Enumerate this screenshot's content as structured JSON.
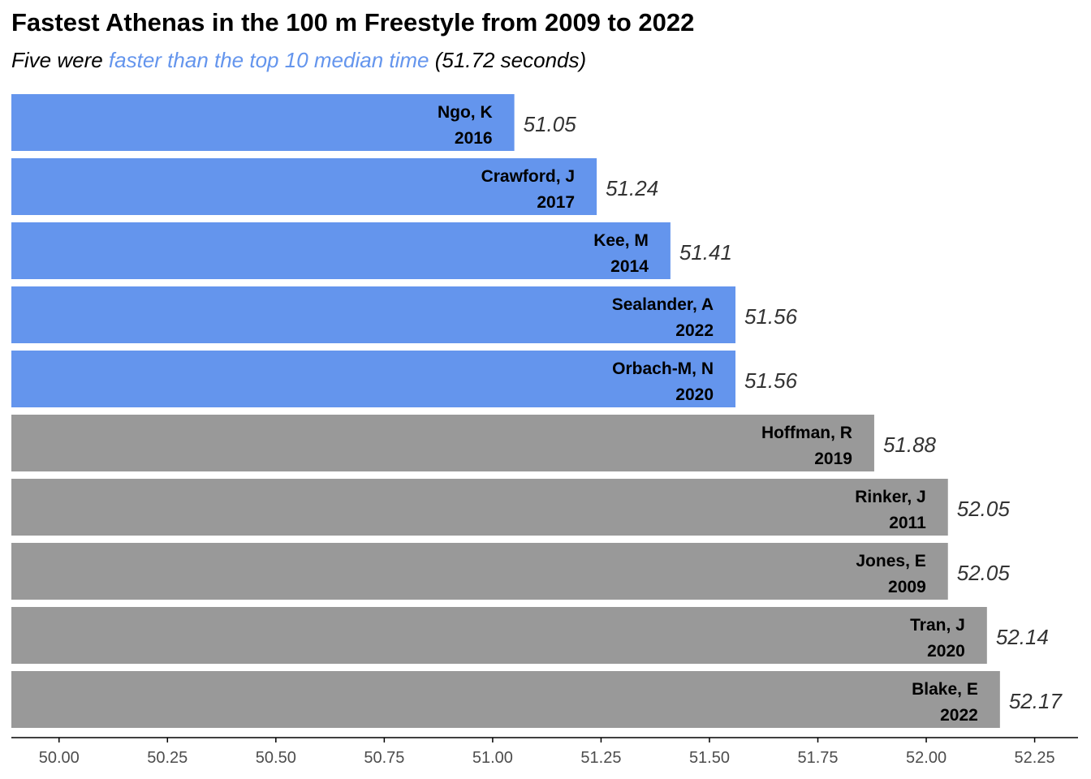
{
  "title": "Fastest Athenas in the 100 m Freestyle from 2009 to 2022",
  "subtitle": {
    "prefix": "Five were ",
    "highlight": "faster than the top 10 median time",
    "suffix": " (51.72 seconds)"
  },
  "colors": {
    "highlight": "#6495ed",
    "default": "#999999"
  },
  "chart_data": {
    "type": "bar",
    "orientation": "horizontal",
    "median": 51.72,
    "xlim": [
      49.89,
      52.35
    ],
    "x_ticks": [
      "50.00",
      "50.25",
      "50.50",
      "50.75",
      "51.00",
      "51.25",
      "51.50",
      "51.75",
      "52.00",
      "52.25"
    ],
    "grid": false,
    "bars": [
      {
        "name": "Ngo, K",
        "year": "2016",
        "value": 51.05,
        "value_label": "51.05",
        "highlight": true
      },
      {
        "name": "Crawford, J",
        "year": "2017",
        "value": 51.24,
        "value_label": "51.24",
        "highlight": true
      },
      {
        "name": "Kee, M",
        "year": "2014",
        "value": 51.41,
        "value_label": "51.41",
        "highlight": true
      },
      {
        "name": "Sealander, A",
        "year": "2022",
        "value": 51.56,
        "value_label": "51.56",
        "highlight": true
      },
      {
        "name": "Orbach-M, N",
        "year": "2020",
        "value": 51.56,
        "value_label": "51.56",
        "highlight": true
      },
      {
        "name": "Hoffman, R",
        "year": "2019",
        "value": 51.88,
        "value_label": "51.88",
        "highlight": false
      },
      {
        "name": "Rinker, J",
        "year": "2011",
        "value": 52.05,
        "value_label": "52.05",
        "highlight": false
      },
      {
        "name": "Jones, E",
        "year": "2009",
        "value": 52.05,
        "value_label": "52.05",
        "highlight": false
      },
      {
        "name": "Tran, J",
        "year": "2020",
        "value": 52.14,
        "value_label": "52.14",
        "highlight": false
      },
      {
        "name": "Blake, E",
        "year": "2022",
        "value": 52.17,
        "value_label": "52.17",
        "highlight": false
      }
    ]
  }
}
